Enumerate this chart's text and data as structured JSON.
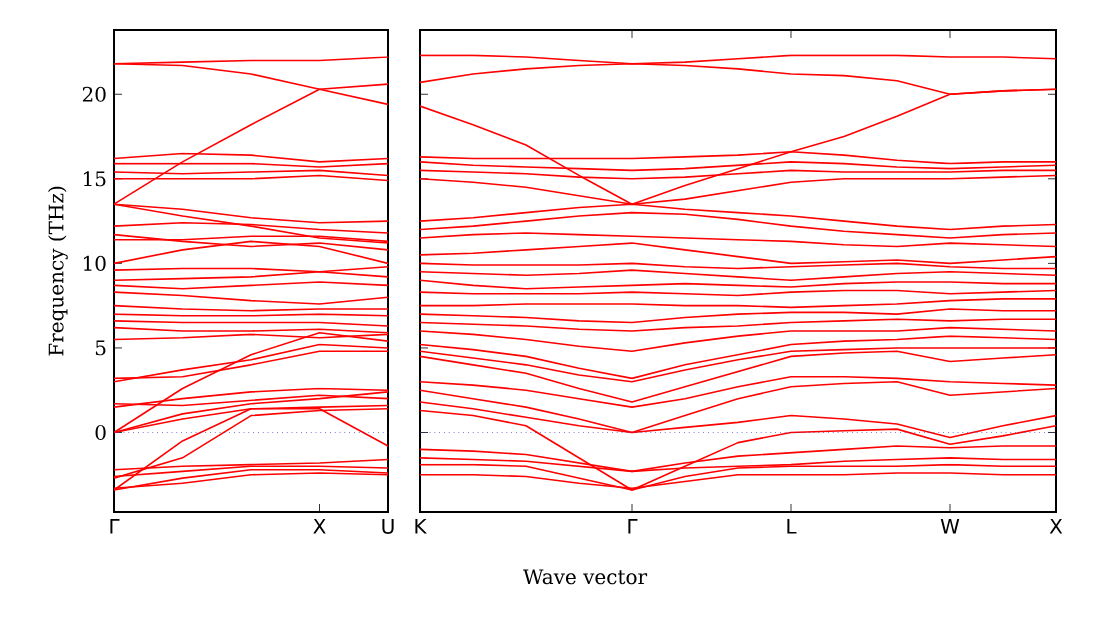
{
  "chart_data": [
    {
      "type": "line",
      "ylabel": "Frequency (THz)",
      "ylim": [
        -4.7,
        23.8
      ],
      "yticks": [
        0,
        5,
        10,
        15,
        20
      ],
      "categories": [
        "Γ",
        null,
        null,
        "X",
        "U"
      ],
      "ref_lines": [
        {
          "axis": "y",
          "value": 0,
          "color": "#3333cc",
          "line_style": "dotted"
        }
      ],
      "series": [
        {
          "color": "#ff0000",
          "values": [
            21.8,
            21.9,
            22.0,
            22.0,
            22.2
          ]
        },
        {
          "color": "#ff0000",
          "values": [
            21.8,
            21.7,
            21.2,
            20.3,
            19.4
          ]
        },
        {
          "color": "#ff0000",
          "values": [
            13.5,
            16.0,
            18.2,
            20.3,
            20.6
          ]
        },
        {
          "color": "#ff0000",
          "values": [
            16.2,
            16.5,
            16.4,
            16.0,
            16.2
          ]
        },
        {
          "color": "#ff0000",
          "values": [
            15.9,
            15.9,
            15.9,
            15.7,
            15.9
          ]
        },
        {
          "color": "#ff0000",
          "values": [
            15.4,
            15.3,
            15.4,
            15.5,
            15.2
          ]
        },
        {
          "color": "#ff0000",
          "values": [
            15.0,
            15.0,
            15.0,
            15.2,
            14.9
          ]
        },
        {
          "color": "#ff0000",
          "values": [
            13.5,
            12.8,
            12.2,
            11.5,
            11.2
          ]
        },
        {
          "color": "#ff0000",
          "values": [
            13.5,
            13.2,
            12.7,
            12.4,
            12.5
          ]
        },
        {
          "color": "#ff0000",
          "values": [
            12.2,
            12.4,
            12.3,
            12.0,
            11.8
          ]
        },
        {
          "color": "#ff0000",
          "values": [
            11.7,
            11.3,
            11.0,
            11.2,
            10.8
          ]
        },
        {
          "color": "#ff0000",
          "values": [
            11.4,
            11.4,
            11.6,
            11.6,
            11.3
          ]
        },
        {
          "color": "#ff0000",
          "values": [
            10.0,
            10.8,
            11.3,
            11.0,
            10.0
          ]
        },
        {
          "color": "#ff0000",
          "values": [
            9.6,
            9.7,
            9.7,
            9.5,
            9.8
          ]
        },
        {
          "color": "#ff0000",
          "values": [
            9.0,
            9.1,
            9.2,
            9.5,
            9.2
          ]
        },
        {
          "color": "#ff0000",
          "values": [
            8.7,
            8.5,
            8.7,
            8.9,
            8.7
          ]
        },
        {
          "color": "#ff0000",
          "values": [
            8.3,
            8.1,
            7.8,
            7.6,
            8.0
          ]
        },
        {
          "color": "#ff0000",
          "values": [
            7.5,
            7.3,
            7.2,
            7.3,
            7.3
          ]
        },
        {
          "color": "#ff0000",
          "values": [
            7.0,
            6.9,
            6.9,
            7.0,
            6.9
          ]
        },
        {
          "color": "#ff0000",
          "values": [
            6.6,
            6.5,
            6.5,
            6.5,
            6.3
          ]
        },
        {
          "color": "#ff0000",
          "values": [
            6.2,
            6.0,
            6.0,
            6.1,
            5.9
          ]
        },
        {
          "color": "#ff0000",
          "values": [
            5.5,
            5.6,
            5.8,
            5.6,
            5.8
          ]
        },
        {
          "color": "#ff0000",
          "values": [
            3.2,
            3.3,
            4.0,
            4.8,
            4.8
          ]
        },
        {
          "color": "#ff0000",
          "values": [
            3.0,
            3.7,
            4.3,
            5.2,
            5.0
          ]
        },
        {
          "color": "#ff0000",
          "values": [
            0,
            2.6,
            4.6,
            5.9,
            5.4
          ]
        },
        {
          "color": "#ff0000",
          "values": [
            1.5,
            2.0,
            2.4,
            2.6,
            2.5
          ]
        },
        {
          "color": "#ff0000",
          "values": [
            1.7,
            1.6,
            1.9,
            2.2,
            2.0
          ]
        },
        {
          "color": "#ff0000",
          "values": [
            0,
            1.1,
            1.7,
            2.0,
            2.4
          ]
        },
        {
          "color": "#ff0000",
          "values": [
            0,
            0.8,
            1.4,
            1.5,
            1.6
          ]
        },
        {
          "color": "#ff0000",
          "values": [
            -3.4,
            -0.5,
            1.4,
            1.4,
            -0.8
          ]
        },
        {
          "color": "#ff0000",
          "values": [
            -2.7,
            -1.5,
            1.0,
            1.3,
            1.4
          ]
        },
        {
          "color": "#ff0000",
          "values": [
            -2.2,
            -2.0,
            -1.9,
            -1.8,
            -1.6
          ]
        },
        {
          "color": "#ff0000",
          "values": [
            -2.6,
            -2.3,
            -2.0,
            -2.0,
            -2.1
          ]
        },
        {
          "color": "#ff0000",
          "values": [
            -3.4,
            -2.7,
            -2.2,
            -2.2,
            -2.4
          ]
        },
        {
          "color": "#ff0000",
          "values": [
            -3.3,
            -3.0,
            -2.5,
            -2.4,
            -2.5
          ]
        }
      ]
    },
    {
      "type": "line",
      "xlabel": "Wave vector",
      "ylim": [
        -4.7,
        23.8
      ],
      "yticks": [
        0,
        5,
        10,
        15,
        20
      ],
      "tick_labels": "x",
      "categories": [
        "K",
        null,
        null,
        null,
        "Γ",
        null,
        null,
        "L",
        null,
        null,
        "W",
        null,
        "X"
      ],
      "ref_lines": [
        {
          "axis": "y",
          "value": 0,
          "color": "#3333cc",
          "line_style": "dotted"
        }
      ],
      "series": [
        {
          "color": "#ff0000",
          "values": [
            22.3,
            22.3,
            22.2,
            22.0,
            21.8,
            21.9,
            22.1,
            22.3,
            22.3,
            22.3,
            22.2,
            22.2,
            22.1
          ]
        },
        {
          "color": "#ff0000",
          "values": [
            20.7,
            21.2,
            21.5,
            21.7,
            21.8,
            21.7,
            21.5,
            21.2,
            21.1,
            20.8,
            20.0,
            20.2,
            20.3
          ]
        },
        {
          "color": "#ff0000",
          "values": [
            19.3,
            18.2,
            17.0,
            15.2,
            13.5,
            14.6,
            15.6,
            16.6,
            17.5,
            18.7,
            20.0,
            20.2,
            20.3
          ]
        },
        {
          "color": "#ff0000",
          "values": [
            16.3,
            16.2,
            16.2,
            16.2,
            16.2,
            16.3,
            16.4,
            16.6,
            16.4,
            16.1,
            15.9,
            16.0,
            16.0
          ]
        },
        {
          "color": "#ff0000",
          "values": [
            16.0,
            15.8,
            15.7,
            15.6,
            15.5,
            15.6,
            15.8,
            16.0,
            15.9,
            15.7,
            15.6,
            15.7,
            15.8
          ]
        },
        {
          "color": "#ff0000",
          "values": [
            15.5,
            15.4,
            15.3,
            15.1,
            15.0,
            15.1,
            15.3,
            15.5,
            15.4,
            15.4,
            15.4,
            15.5,
            15.5
          ]
        },
        {
          "color": "#ff0000",
          "values": [
            15.0,
            14.8,
            14.5,
            14.0,
            13.5,
            13.8,
            14.3,
            14.8,
            15.0,
            15.0,
            15.0,
            15.1,
            15.2
          ]
        },
        {
          "color": "#ff0000",
          "values": [
            12.5,
            12.7,
            13.0,
            13.3,
            13.5,
            13.2,
            13.0,
            12.8,
            12.5,
            12.2,
            12.0,
            12.2,
            12.3
          ]
        },
        {
          "color": "#ff0000",
          "values": [
            12.0,
            12.2,
            12.5,
            12.8,
            13.0,
            12.9,
            12.6,
            12.2,
            11.9,
            11.7,
            11.5,
            11.7,
            11.8
          ]
        },
        {
          "color": "#ff0000",
          "values": [
            11.5,
            11.7,
            11.8,
            11.7,
            11.6,
            11.5,
            11.4,
            11.3,
            11.1,
            11.0,
            11.2,
            11.1,
            11.0
          ]
        },
        {
          "color": "#ff0000",
          "values": [
            10.5,
            10.6,
            10.8,
            11.0,
            11.2,
            10.8,
            10.4,
            10.0,
            10.1,
            10.2,
            10.0,
            10.2,
            10.4
          ]
        },
        {
          "color": "#ff0000",
          "values": [
            10.0,
            9.9,
            9.9,
            9.9,
            10.0,
            9.8,
            9.7,
            9.8,
            9.9,
            10.0,
            9.8,
            9.7,
            9.7
          ]
        },
        {
          "color": "#ff0000",
          "values": [
            9.5,
            9.4,
            9.3,
            9.4,
            9.6,
            9.4,
            9.2,
            9.0,
            9.2,
            9.4,
            9.5,
            9.4,
            9.3
          ]
        },
        {
          "color": "#ff0000",
          "values": [
            9.0,
            8.7,
            8.5,
            8.6,
            8.7,
            8.8,
            8.7,
            8.6,
            8.8,
            8.9,
            8.9,
            8.8,
            8.8
          ]
        },
        {
          "color": "#ff0000",
          "values": [
            8.3,
            8.2,
            8.2,
            8.2,
            8.3,
            8.2,
            8.1,
            8.3,
            8.4,
            8.4,
            8.2,
            8.3,
            8.4
          ]
        },
        {
          "color": "#ff0000",
          "values": [
            7.5,
            7.5,
            7.6,
            7.6,
            7.6,
            7.5,
            7.5,
            7.4,
            7.5,
            7.6,
            7.8,
            7.9,
            7.9
          ]
        },
        {
          "color": "#ff0000",
          "values": [
            7.0,
            6.9,
            6.8,
            6.6,
            6.5,
            6.8,
            7.0,
            7.1,
            7.1,
            7.0,
            7.3,
            7.2,
            7.2
          ]
        },
        {
          "color": "#ff0000",
          "values": [
            6.5,
            6.4,
            6.3,
            6.1,
            6.0,
            6.2,
            6.3,
            6.5,
            6.6,
            6.7,
            6.6,
            6.7,
            6.7
          ]
        },
        {
          "color": "#ff0000",
          "values": [
            6.0,
            5.8,
            5.5,
            5.1,
            4.8,
            5.3,
            5.7,
            6.0,
            6.0,
            6.0,
            6.2,
            6.1,
            6.0
          ]
        },
        {
          "color": "#ff0000",
          "values": [
            5.2,
            4.9,
            4.5,
            3.8,
            3.2,
            4.0,
            4.6,
            5.2,
            5.4,
            5.5,
            5.7,
            5.6,
            5.5
          ]
        },
        {
          "color": "#ff0000",
          "values": [
            4.8,
            4.4,
            4.0,
            3.4,
            3.0,
            3.7,
            4.3,
            4.8,
            4.9,
            5.0,
            5.0,
            5.0,
            5.0
          ]
        },
        {
          "color": "#ff0000",
          "values": [
            4.5,
            4.0,
            3.5,
            2.6,
            1.8,
            2.7,
            3.6,
            4.5,
            4.7,
            4.8,
            4.2,
            4.4,
            4.6
          ]
        },
        {
          "color": "#ff0000",
          "values": [
            3.0,
            2.8,
            2.5,
            2.0,
            1.5,
            2.0,
            2.7,
            3.3,
            3.3,
            3.2,
            3.0,
            2.9,
            2.8
          ]
        },
        {
          "color": "#ff0000",
          "values": [
            2.5,
            2.0,
            1.5,
            0.8,
            0,
            1.0,
            2.0,
            2.7,
            2.9,
            3.0,
            2.2,
            2.4,
            2.6
          ]
        },
        {
          "color": "#ff0000",
          "values": [
            1.8,
            1.4,
            0.9,
            0.4,
            0,
            0.3,
            0.6,
            1.0,
            0.8,
            0.5,
            -0.3,
            0.4,
            1.0
          ]
        },
        {
          "color": "#ff0000",
          "values": [
            1.3,
            1.0,
            0.4,
            -1.5,
            -3.4,
            -2.0,
            -0.6,
            0.0,
            0.1,
            0.2,
            -0.7,
            -0.2,
            0.4
          ]
        },
        {
          "color": "#ff0000",
          "values": [
            -1.0,
            -1.1,
            -1.3,
            -1.8,
            -2.3,
            -1.8,
            -1.4,
            -1.2,
            -1.0,
            -0.8,
            -0.9,
            -0.8,
            -0.8
          ]
        },
        {
          "color": "#ff0000",
          "values": [
            -1.5,
            -1.6,
            -1.7,
            -2.0,
            -2.3,
            -2.1,
            -2.0,
            -1.9,
            -1.7,
            -1.6,
            -1.5,
            -1.6,
            -1.6
          ]
        },
        {
          "color": "#ff0000",
          "values": [
            -1.9,
            -1.9,
            -2.0,
            -2.7,
            -3.4,
            -2.6,
            -2.1,
            -2.0,
            -2.0,
            -2.0,
            -1.9,
            -2.0,
            -2.0
          ]
        },
        {
          "color": "#ff0000",
          "values": [
            -2.5,
            -2.5,
            -2.6,
            -3.0,
            -3.3,
            -2.9,
            -2.5,
            -2.5,
            -2.5,
            -2.4,
            -2.4,
            -2.5,
            -2.5
          ]
        }
      ]
    }
  ]
}
